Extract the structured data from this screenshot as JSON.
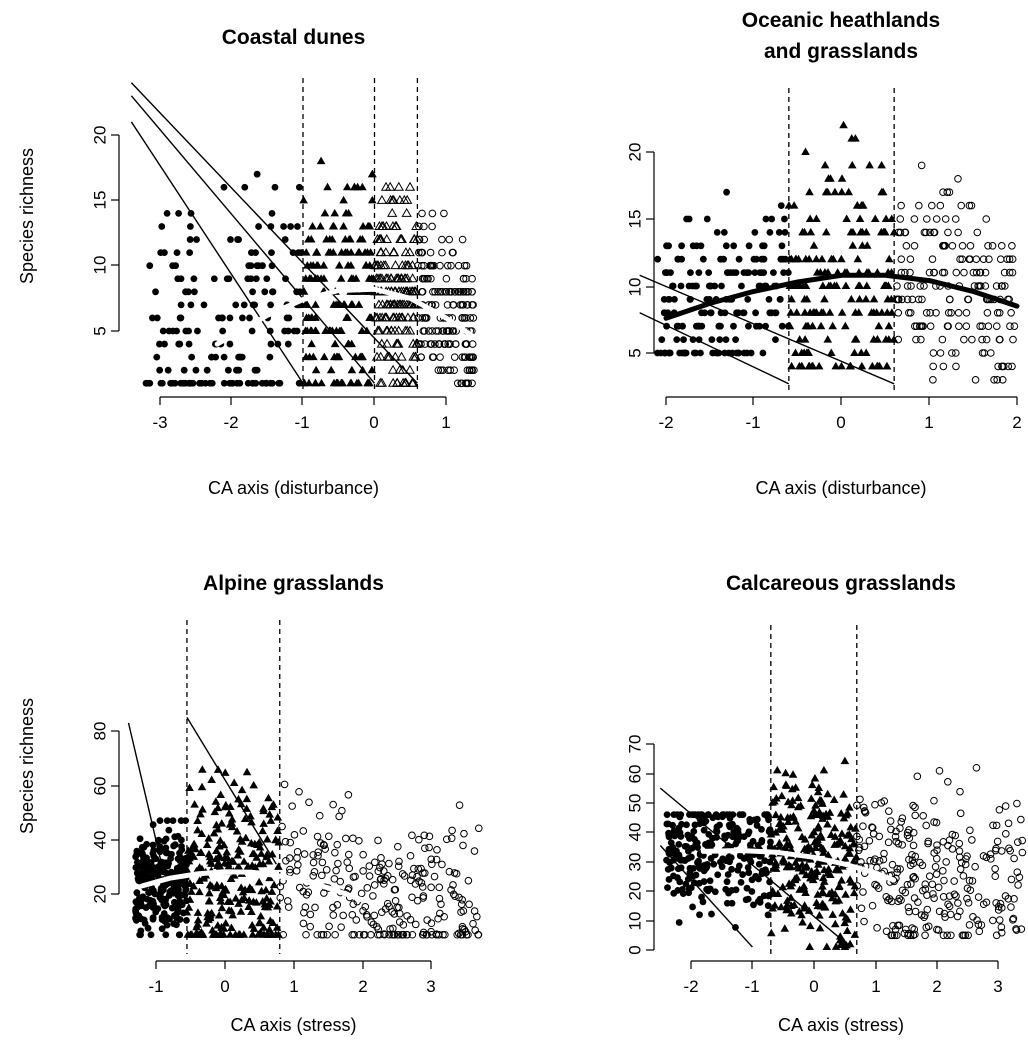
{
  "chart_data": [
    {
      "type": "scatter",
      "title": [
        "Coastal dunes"
      ],
      "xlabel": "CA axis (disturbance)",
      "ylabel": "Species richness",
      "xticks": [
        "-3",
        "-2",
        "-1",
        "0",
        "1"
      ],
      "yticks": [
        "5",
        "10",
        "15",
        "20"
      ],
      "xlim": [
        -3.4,
        1.6
      ],
      "ylim": [
        0,
        24
      ],
      "grid": false,
      "dashed_vlines": [
        -1,
        0,
        0.6
      ],
      "series": [
        {
          "marker": "filled-circle",
          "x_range": [
            -3.2,
            -1.0
          ],
          "y_range": [
            1,
            23
          ]
        },
        {
          "marker": "filled-triangle",
          "x_range": [
            -1.0,
            0.0
          ],
          "y_range": [
            1,
            21
          ]
        },
        {
          "marker": "open-triangle",
          "x_range": [
            0.0,
            0.6
          ],
          "y_range": [
            1,
            17
          ]
        },
        {
          "marker": "open-circle",
          "x_range": [
            0.6,
            1.4
          ],
          "y_range": [
            1,
            15
          ]
        }
      ],
      "fit_curve": {
        "color": "white",
        "points": [
          [
            -2.2,
            4
          ],
          [
            -1.5,
            6.2
          ],
          [
            -1.0,
            7.4
          ],
          [
            -0.5,
            8.1
          ],
          [
            0.0,
            8.2
          ],
          [
            0.5,
            7.5
          ],
          [
            1.0,
            6.0
          ],
          [
            1.4,
            4.5
          ]
        ]
      },
      "diagonal_lines": [
        [
          [
            -3.4,
            21
          ],
          [
            -1.0,
            1
          ]
        ],
        [
          [
            -3.4,
            23
          ],
          [
            0.0,
            1
          ]
        ],
        [
          [
            -3.4,
            24
          ],
          [
            0.6,
            1
          ]
        ]
      ]
    },
    {
      "type": "scatter",
      "title": [
        "Oceanic heathlands",
        "and grasslands"
      ],
      "xlabel": "CA axis (disturbance)",
      "ylabel": "",
      "xticks": [
        "-2",
        "-1",
        "0",
        "1",
        "2"
      ],
      "yticks": [
        "5",
        "10",
        "15",
        "20"
      ],
      "xlim": [
        -2.3,
        2.1
      ],
      "ylim": [
        2,
        24
      ],
      "grid": false,
      "dashed_vlines": [
        -0.6,
        0.6
      ],
      "series": [
        {
          "marker": "filled-circle",
          "x_range": [
            -2.1,
            -0.6
          ],
          "y_range": [
            5,
            19
          ]
        },
        {
          "marker": "filled-triangle",
          "x_range": [
            -0.6,
            0.6
          ],
          "y_range": [
            4,
            24
          ]
        },
        {
          "marker": "open-circle",
          "x_range": [
            0.6,
            2.0
          ],
          "y_range": [
            3,
            20
          ]
        }
      ],
      "fit_curve": {
        "color": "black",
        "points": [
          [
            -2.0,
            7.6
          ],
          [
            -1.5,
            8.7
          ],
          [
            -1.0,
            9.6
          ],
          [
            -0.5,
            10.3
          ],
          [
            0.0,
            10.8
          ],
          [
            0.5,
            10.8
          ],
          [
            1.0,
            10.4
          ],
          [
            1.5,
            9.6
          ],
          [
            2.0,
            8.5
          ]
        ]
      },
      "diagonal_lines": [
        [
          [
            -2.3,
            8
          ],
          [
            -0.6,
            2.7
          ]
        ],
        [
          [
            -2.3,
            10.8
          ],
          [
            0.6,
            2.7
          ]
        ]
      ]
    },
    {
      "type": "scatter",
      "title": [
        "Alpine grasslands"
      ],
      "xlabel": "CA axis (stress)",
      "ylabel": "Species richness",
      "xticks": [
        "-1",
        "0",
        "1",
        "2",
        "3"
      ],
      "yticks": [
        "20",
        "40",
        "60",
        "80"
      ],
      "xlim": [
        -1.4,
        3.8
      ],
      "ylim": [
        3,
        85
      ],
      "grid": false,
      "dashed_vlines": [
        -0.55,
        0.8
      ],
      "series": [
        {
          "marker": "filled-circle",
          "x_range": [
            -1.3,
            -0.55
          ],
          "y_range": [
            5,
            47
          ]
        },
        {
          "marker": "filled-triangle",
          "x_range": [
            -0.55,
            0.8
          ],
          "y_range": [
            5,
            81
          ]
        },
        {
          "marker": "open-circle",
          "x_range": [
            0.8,
            3.7
          ],
          "y_range": [
            5,
            68
          ]
        }
      ],
      "fit_curve": {
        "color": "white",
        "points": [
          [
            -1.2,
            23
          ],
          [
            -0.8,
            25.8
          ],
          [
            -0.4,
            27.4
          ],
          [
            0.0,
            28.2
          ],
          [
            0.4,
            28.0
          ],
          [
            0.8,
            26.6
          ],
          [
            1.2,
            24.5
          ],
          [
            1.6,
            21.5
          ],
          [
            2.0,
            17.8
          ]
        ]
      },
      "diagonal_lines": [
        [
          [
            -1.4,
            83
          ],
          [
            -0.9,
            29
          ]
        ],
        [
          [
            -0.55,
            85
          ],
          [
            0.75,
            31
          ]
        ]
      ]
    },
    {
      "type": "scatter",
      "title": [
        "Calcareous grasslands"
      ],
      "xlabel": "CA axis (stress)",
      "ylabel": "",
      "xticks": [
        "-2",
        "-1",
        "0",
        "1",
        "2",
        "3"
      ],
      "yticks": [
        "0",
        "10",
        "20",
        "30",
        "40",
        "50",
        "60",
        "70"
      ],
      "xlim": [
        -2.5,
        3.5
      ],
      "ylim": [
        0,
        72
      ],
      "grid": false,
      "dashed_vlines": [
        -0.7,
        0.7
      ],
      "series": [
        {
          "marker": "filled-circle",
          "x_range": [
            -2.4,
            -0.7
          ],
          "y_range": [
            1,
            46
          ]
        },
        {
          "marker": "filled-triangle",
          "x_range": [
            -0.7,
            0.7
          ],
          "y_range": [
            1,
            65
          ]
        },
        {
          "marker": "open-circle",
          "x_range": [
            0.7,
            3.4
          ],
          "y_range": [
            5,
            70
          ]
        }
      ],
      "fit_curve": {
        "color": "white",
        "points": [
          [
            -1.8,
            33.5
          ],
          [
            -1.2,
            33.8
          ],
          [
            -0.6,
            33.2
          ],
          [
            0.0,
            31.5
          ],
          [
            0.5,
            29.2
          ],
          [
            1.0,
            26.2
          ],
          [
            1.3,
            23.8
          ]
        ]
      },
      "diagonal_lines": [
        [
          [
            -2.5,
            55
          ],
          [
            0.6,
            1
          ]
        ],
        [
          [
            -2.5,
            35.5
          ],
          [
            -1.0,
            1
          ]
        ]
      ]
    }
  ]
}
